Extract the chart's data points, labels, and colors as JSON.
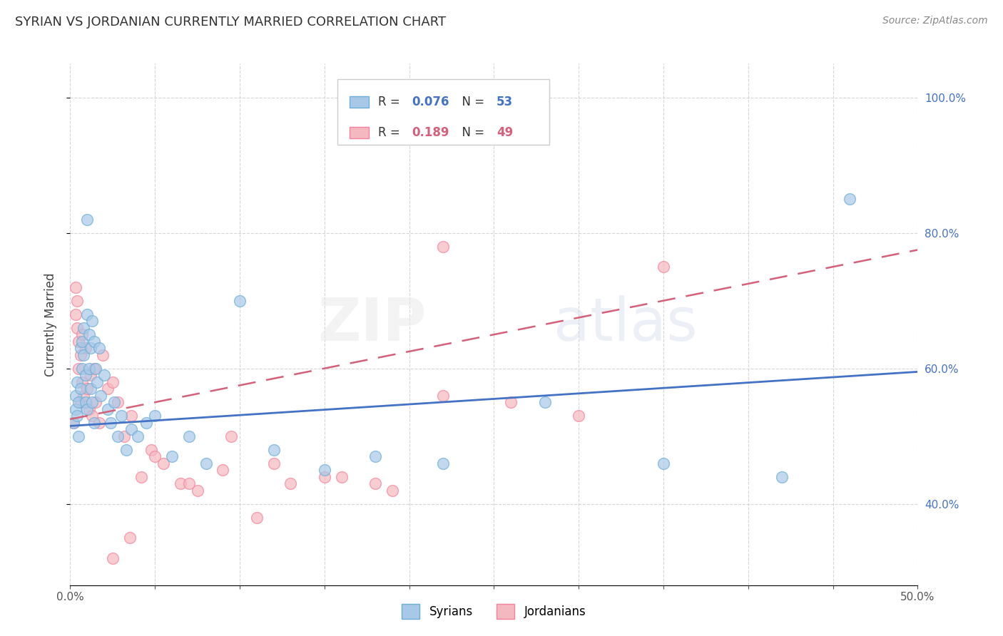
{
  "title": "SYRIAN VS JORDANIAN CURRENTLY MARRIED CORRELATION CHART",
  "source": "Source: ZipAtlas.com",
  "ylabel": "Currently Married",
  "xlim": [
    0.0,
    0.5
  ],
  "ylim": [
    0.28,
    1.05
  ],
  "y_ticks": [
    0.4,
    0.6,
    0.8,
    1.0
  ],
  "grid_color": "#cccccc",
  "background_color": "#ffffff",
  "watermark_zip": "ZIP",
  "watermark_atlas": "atlas",
  "legend_r1": "0.076",
  "legend_n1": "53",
  "legend_r2": "0.189",
  "legend_n2": "49",
  "color_syrians": "#a8c8e8",
  "color_jordanians": "#f4b8c0",
  "edge_syrians": "#6baed6",
  "edge_jordanians": "#f4829a",
  "trendline_color_syrians": "#4472c4",
  "trendline_color_jordanians": "#d4607a",
  "label_color_blue": "#4472c4",
  "label_color_pink": "#d4607a",
  "syrians_x": [
    0.002,
    0.003,
    0.003,
    0.004,
    0.004,
    0.005,
    0.005,
    0.006,
    0.006,
    0.007,
    0.007,
    0.008,
    0.008,
    0.009,
    0.009,
    0.01,
    0.01,
    0.011,
    0.011,
    0.012,
    0.012,
    0.013,
    0.013,
    0.014,
    0.014,
    0.015,
    0.016,
    0.017,
    0.018,
    0.02,
    0.022,
    0.024,
    0.026,
    0.028,
    0.03,
    0.033,
    0.036,
    0.04,
    0.045,
    0.05,
    0.06,
    0.07,
    0.08,
    0.1,
    0.12,
    0.15,
    0.18,
    0.22,
    0.28,
    0.35,
    0.42,
    0.46,
    0.01
  ],
  "syrians_y": [
    0.52,
    0.54,
    0.56,
    0.58,
    0.53,
    0.55,
    0.5,
    0.57,
    0.63,
    0.6,
    0.64,
    0.66,
    0.62,
    0.55,
    0.59,
    0.54,
    0.68,
    0.65,
    0.6,
    0.63,
    0.57,
    0.55,
    0.67,
    0.52,
    0.64,
    0.6,
    0.58,
    0.63,
    0.56,
    0.59,
    0.54,
    0.52,
    0.55,
    0.5,
    0.53,
    0.48,
    0.51,
    0.5,
    0.52,
    0.53,
    0.47,
    0.5,
    0.46,
    0.7,
    0.48,
    0.45,
    0.47,
    0.46,
    0.55,
    0.46,
    0.44,
    0.85,
    0.82
  ],
  "jordanians_x": [
    0.002,
    0.003,
    0.003,
    0.004,
    0.004,
    0.005,
    0.005,
    0.006,
    0.006,
    0.007,
    0.007,
    0.008,
    0.009,
    0.01,
    0.011,
    0.012,
    0.013,
    0.014,
    0.015,
    0.017,
    0.019,
    0.022,
    0.025,
    0.028,
    0.032,
    0.036,
    0.042,
    0.048,
    0.055,
    0.065,
    0.075,
    0.09,
    0.11,
    0.13,
    0.16,
    0.19,
    0.22,
    0.26,
    0.3,
    0.35,
    0.22,
    0.15,
    0.12,
    0.18,
    0.095,
    0.07,
    0.05,
    0.035,
    0.025
  ],
  "jordanians_y": [
    0.52,
    0.72,
    0.68,
    0.7,
    0.66,
    0.64,
    0.6,
    0.62,
    0.55,
    0.58,
    0.65,
    0.56,
    0.63,
    0.57,
    0.54,
    0.59,
    0.53,
    0.6,
    0.55,
    0.52,
    0.62,
    0.57,
    0.58,
    0.55,
    0.5,
    0.53,
    0.44,
    0.48,
    0.46,
    0.43,
    0.42,
    0.45,
    0.38,
    0.43,
    0.44,
    0.42,
    0.78,
    0.55,
    0.53,
    0.75,
    0.56,
    0.44,
    0.46,
    0.43,
    0.5,
    0.43,
    0.47,
    0.35,
    0.32
  ],
  "trendline_syrians_y0": 0.515,
  "trendline_syrians_y1": 0.595,
  "trendline_jordanians_y0": 0.525,
  "trendline_jordanians_y1": 0.775
}
